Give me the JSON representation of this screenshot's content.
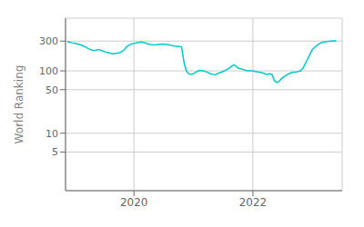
{
  "chart_data": {
    "type": "line",
    "ylabel": "World Ranking",
    "x": [
      2018.88,
      2018.92,
      2018.96,
      2019.0,
      2019.04,
      2019.08,
      2019.12,
      2019.16,
      2019.2,
      2019.24,
      2019.28,
      2019.32,
      2019.36,
      2019.4,
      2019.44,
      2019.48,
      2019.52,
      2019.56,
      2019.6,
      2019.64,
      2019.68,
      2019.72,
      2019.76,
      2019.8,
      2019.84,
      2019.88,
      2019.92,
      2019.96,
      2020.0,
      2020.04,
      2020.08,
      2020.12,
      2020.16,
      2020.2,
      2020.24,
      2020.28,
      2020.32,
      2020.36,
      2020.4,
      2020.44,
      2020.48,
      2020.52,
      2020.56,
      2020.6,
      2020.64,
      2020.68,
      2020.72,
      2020.76,
      2020.8,
      2020.84,
      2020.88,
      2020.92,
      2020.96,
      2021.0,
      2021.04,
      2021.08,
      2021.12,
      2021.16,
      2021.2,
      2021.24,
      2021.28,
      2021.32,
      2021.36,
      2021.4,
      2021.44,
      2021.48,
      2021.52,
      2021.56,
      2021.6,
      2021.64,
      2021.68,
      2021.72,
      2021.76,
      2021.8,
      2021.84,
      2021.88,
      2021.92,
      2021.96,
      2022.0,
      2022.04,
      2022.08,
      2022.12,
      2022.16,
      2022.2,
      2022.24,
      2022.28,
      2022.32,
      2022.36,
      2022.4,
      2022.44,
      2022.48,
      2022.52,
      2022.56,
      2022.6,
      2022.64,
      2022.68,
      2022.72,
      2022.76,
      2022.8,
      2022.84,
      2022.88,
      2022.92,
      2022.96,
      2023.0,
      2023.08,
      2023.16,
      2023.24,
      2023.32,
      2023.4
    ],
    "values": [
      295,
      288,
      282,
      278,
      272,
      265,
      258,
      248,
      238,
      225,
      218,
      212,
      215,
      220,
      215,
      208,
      200,
      196,
      192,
      188,
      190,
      192,
      196,
      205,
      220,
      245,
      260,
      270,
      275,
      280,
      286,
      290,
      285,
      278,
      270,
      265,
      262,
      260,
      265,
      268,
      270,
      268,
      265,
      260,
      255,
      250,
      248,
      245,
      242,
      140,
      100,
      90,
      88,
      90,
      95,
      100,
      102,
      100,
      98,
      95,
      90,
      88,
      86,
      90,
      93,
      96,
      100,
      105,
      110,
      118,
      125,
      118,
      110,
      108,
      105,
      102,
      100,
      100,
      100,
      98,
      96,
      95,
      93,
      90,
      88,
      90,
      88,
      70,
      65,
      68,
      75,
      80,
      85,
      90,
      93,
      95,
      95,
      98,
      100,
      110,
      130,
      155,
      185,
      220,
      260,
      285,
      295,
      300,
      305
    ],
    "color": "#00c8c8",
    "xlim": [
      2018.85,
      2023.5
    ],
    "xticks": [
      2020,
      2022
    ],
    "ylim": [
      1.2,
      700
    ],
    "yticks": [
      5,
      10,
      50,
      100,
      300
    ],
    "log": "y",
    "grid": true
  }
}
